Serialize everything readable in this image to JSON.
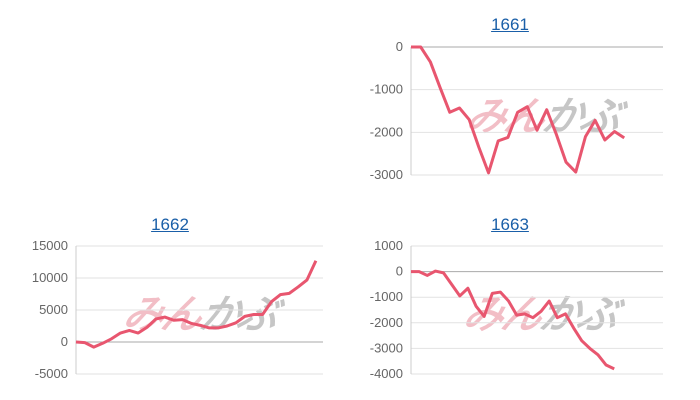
{
  "watermark": {
    "part1": "みん",
    "part2": "かぶ"
  },
  "line_color": "#e8566f",
  "chart_data": [
    {
      "type": "line",
      "title": "1661",
      "ylim": [
        -3000,
        0
      ],
      "yticks": [
        0,
        -1000,
        -2000,
        -3000
      ],
      "grid": true,
      "values": [
        0,
        0,
        -350,
        -950,
        -1530,
        -1430,
        -1700,
        -2350,
        -2950,
        -2200,
        -2120,
        -1530,
        -1400,
        -1950,
        -1470,
        -2050,
        -2700,
        -2930,
        -2100,
        -1720,
        -2180,
        -1980,
        -2130
      ]
    },
    {
      "type": "line",
      "title": "1662",
      "ylim": [
        -5000,
        15000
      ],
      "yticks": [
        15000,
        10000,
        5000,
        0,
        -5000
      ],
      "grid": true,
      "values": [
        0,
        -100,
        -800,
        -200,
        500,
        1400,
        1800,
        1400,
        2300,
        3600,
        3900,
        3400,
        3500,
        2900,
        2600,
        2200,
        2200,
        2500,
        3000,
        4000,
        4300,
        4300,
        6300,
        7400,
        7600,
        8600,
        9700,
        12700
      ]
    },
    {
      "type": "line",
      "title": "1663",
      "ylim": [
        -4000,
        1000
      ],
      "yticks": [
        1000,
        0,
        -1000,
        -2000,
        -3000,
        -4000
      ],
      "grid": true,
      "values": [
        0,
        0,
        -150,
        20,
        -50,
        -500,
        -950,
        -650,
        -1350,
        -1750,
        -850,
        -800,
        -1150,
        -1700,
        -1650,
        -1800,
        -1550,
        -1150,
        -1800,
        -1650,
        -2200,
        -2700,
        -3000,
        -3250,
        -3650,
        -3800
      ]
    }
  ]
}
